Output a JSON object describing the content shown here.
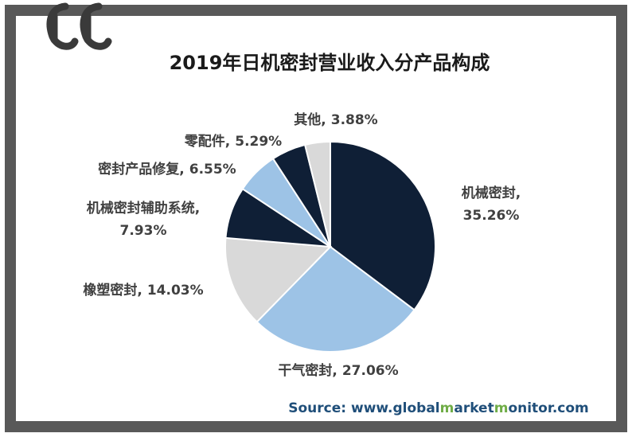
{
  "chart_data": {
    "type": "pie",
    "title": "2019年日机密封营业收入分产品构成",
    "categories": [
      "机械密封",
      "干气密封",
      "橡塑密封",
      "机械密封辅助系统",
      "密封产品修复",
      "零配件",
      "其他"
    ],
    "values": [
      35.26,
      27.06,
      14.03,
      7.93,
      6.55,
      5.29,
      3.88
    ],
    "value_labels": [
      "35.26%",
      "27.06%",
      "14.03%",
      "7.93%",
      "6.55%",
      "5.29%",
      "3.88%"
    ],
    "label_separator": ",",
    "colors": [
      "#0f1f36",
      "#9dc3e6",
      "#d9d9d9",
      "#0f1f36",
      "#9dc3e6",
      "#0f1f36",
      "#d9d9d9"
    ]
  },
  "source": [
    {
      "text": "Source: www.",
      "color": "#1f4e79"
    },
    {
      "text": "global",
      "color": "#1f4e79"
    },
    {
      "text": "m",
      "color": "#70ad47"
    },
    {
      "text": "arket",
      "color": "#1f4e79"
    },
    {
      "text": "m",
      "color": "#70ad47"
    },
    {
      "text": "onitor",
      "color": "#1f4e79"
    },
    {
      "text": ".com",
      "color": "#1f4e79"
    }
  ]
}
